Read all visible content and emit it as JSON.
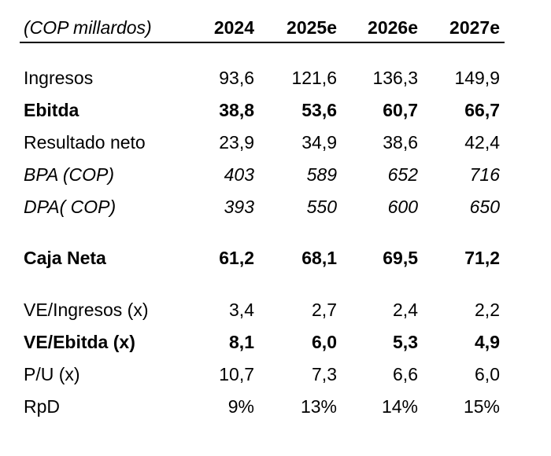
{
  "table": {
    "header": [
      "(COP millardos)",
      "2024",
      "2025e",
      "2026e",
      "2027e"
    ],
    "rows": [
      {
        "label": "Ingresos",
        "values": [
          "93,6",
          "121,6",
          "136,3",
          "149,9"
        ]
      },
      {
        "label": "Ebitda",
        "values": [
          "38,8",
          "53,6",
          "60,7",
          "66,7"
        ]
      },
      {
        "label": "Resultado neto",
        "values": [
          "23,9",
          "34,9",
          "38,6",
          "42,4"
        ]
      },
      {
        "label": "BPA (COP)",
        "values": [
          "403",
          "589",
          "652",
          "716"
        ]
      },
      {
        "label": "DPA( COP)",
        "values": [
          "393",
          "550",
          "600",
          "650"
        ]
      },
      {
        "label": "Caja Neta",
        "values": [
          "61,2",
          "68,1",
          "69,5",
          "71,2"
        ]
      },
      {
        "label": "VE/Ingresos (x)",
        "values": [
          "3,4",
          "2,7",
          "2,4",
          "2,2"
        ]
      },
      {
        "label": "VE/Ebitda (x)",
        "values": [
          "8,1",
          "6,0",
          "5,3",
          "4,9"
        ]
      },
      {
        "label": "P/U (x)",
        "values": [
          "10,7",
          "7,3",
          "6,6",
          "6,0"
        ]
      },
      {
        "label": "RpD",
        "values": [
          "9%",
          "13%",
          "14%",
          "15%"
        ]
      }
    ]
  }
}
